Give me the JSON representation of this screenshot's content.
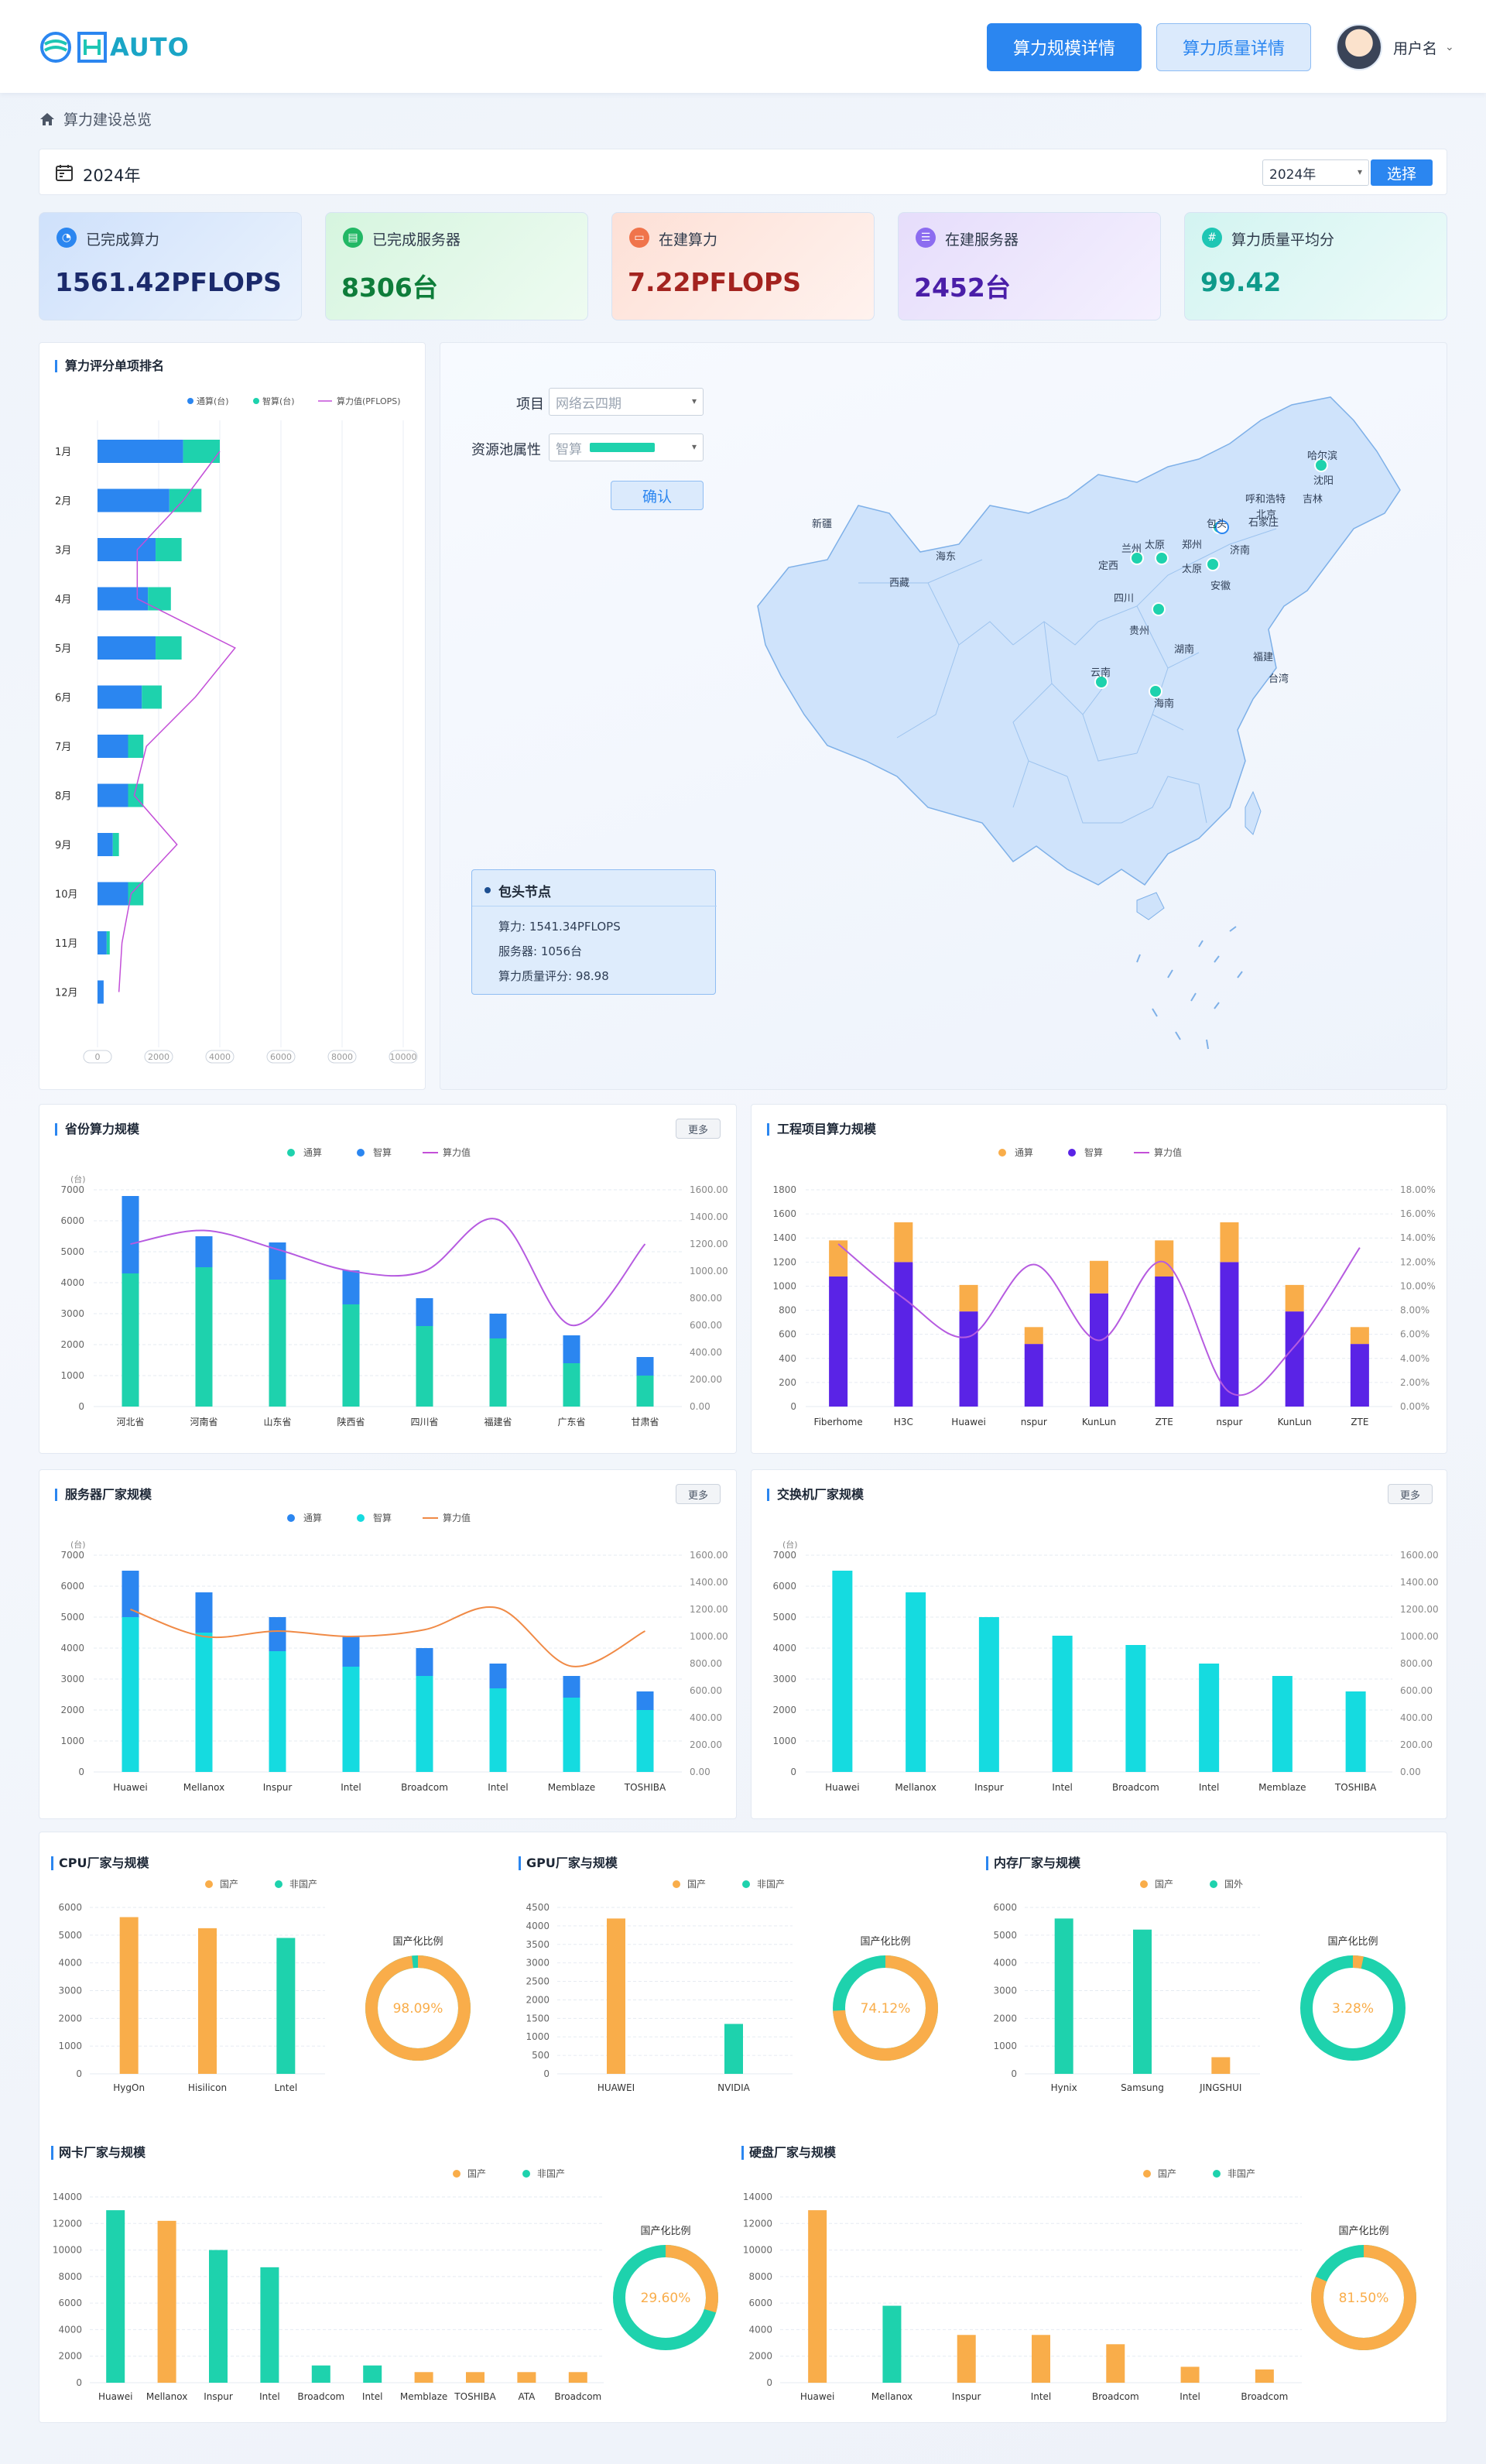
{
  "header": {
    "logo_text": "AUTO",
    "btn_scale": "算力规模详情",
    "btn_quality": "算力质量详情",
    "username": "用户名"
  },
  "breadcrumb": "算力建设总览",
  "filter": {
    "label": "2024年",
    "select_value": "2024年",
    "select_button": "选择"
  },
  "stats": [
    {
      "label": "已完成算力",
      "value": "1561.42PFLOPS",
      "color": "#1b2a6b"
    },
    {
      "label": "已完成服务器",
      "value": "8306台",
      "color": "#0e7d3a"
    },
    {
      "label": "在建算力",
      "value": "7.22PFLOPS",
      "color": "#a3231f"
    },
    {
      "label": "在建服务器",
      "value": "2452台",
      "color": "#4a1ea8"
    },
    {
      "label": "算力质量平均分",
      "value": "99.42",
      "color": "#0e9a8a"
    }
  ],
  "ranking": {
    "title": "算力评分单项排名",
    "legend": [
      "通算(台)",
      "智算(台)",
      "算力值(PFLOPS)"
    ],
    "chart_data": {
      "type": "bar",
      "orientation": "horizontal",
      "categories": [
        "1月",
        "2月",
        "3月",
        "4月",
        "5月",
        "6月",
        "7月",
        "8月",
        "9月",
        "10月",
        "11月",
        "12月"
      ],
      "series": [
        {
          "name": "通算(台)",
          "values": [
            2800,
            2350,
            1900,
            1650,
            1900,
            1450,
            1000,
            1000,
            500,
            1000,
            300,
            200
          ]
        },
        {
          "name": "智算(台)",
          "values": [
            1200,
            1050,
            850,
            750,
            850,
            650,
            500,
            500,
            200,
            500,
            100,
            0
          ]
        },
        {
          "name": "算力值(PFLOPS)",
          "values": [
            4000,
            2800,
            1300,
            1300,
            4500,
            3200,
            1600,
            1200,
            2600,
            1100,
            800,
            700
          ]
        }
      ],
      "xticks": [
        "0",
        "2000",
        "4000",
        "6000",
        "8000",
        "10000"
      ],
      "xlim": [
        0,
        10000
      ],
      "colors": [
        "#2b86f0",
        "#1ed2ad",
        "#c34fd8"
      ]
    }
  },
  "map": {
    "label_project": "项目",
    "project_value": "网络云四期",
    "label_pool": "资源池属性",
    "pool_value": "智算",
    "confirm": "确认",
    "cities": [
      "哈尔滨",
      "沈阳",
      "吉林",
      "呼和浩特",
      "北京",
      "石家庄",
      "包头",
      "新疆",
      "兰州",
      "太原",
      "郑州",
      "济南",
      "海东",
      "定西",
      "太原",
      "西藏",
      "安徽",
      "四川",
      "贵州",
      "湖南",
      "福建",
      "台湾",
      "云南",
      "海南"
    ],
    "tooltip": {
      "title": "包头节点",
      "power": "算力:  1541.34PFLOPS",
      "servers": "服务器:  1056台",
      "score": "算力质量评分:  98.98"
    }
  },
  "province": {
    "title": "省份算力规模",
    "more": "更多",
    "unit": "(台)",
    "legend": [
      "通算",
      "智算",
      "算力值"
    ],
    "chart_data": {
      "type": "bar",
      "stacked": true,
      "categories": [
        "河北省",
        "河南省",
        "山东省",
        "陕西省",
        "四川省",
        "福建省",
        "广东省",
        "甘肃省"
      ],
      "series": [
        {
          "name": "智算",
          "values": [
            4300,
            4500,
            4100,
            3300,
            2600,
            2200,
            1400,
            1000
          ]
        },
        {
          "name": "通算",
          "values": [
            2500,
            1000,
            1200,
            1100,
            900,
            800,
            900,
            600
          ]
        },
        {
          "name": "算力值",
          "values": [
            1200,
            1300,
            1160,
            1000,
            1000,
            1380,
            600,
            1200
          ]
        }
      ],
      "yticks": [
        "0",
        "1000",
        "2000",
        "3000",
        "4000",
        "5000",
        "6000",
        "7000"
      ],
      "y2ticks": [
        "0.00",
        "200.00",
        "400.00",
        "600.00",
        "800.00",
        "1000.00",
        "1200.00",
        "1400.00",
        "1600.00"
      ],
      "ylim": [
        0,
        7000
      ],
      "y2lim": [
        0,
        1600
      ]
    }
  },
  "project": {
    "title": "工程项目算力规模",
    "legend": [
      "通算",
      "智算",
      "算力值"
    ],
    "chart_data": {
      "type": "bar",
      "stacked": true,
      "categories": [
        "Fiberhome",
        "H3C",
        "Huawei",
        "nspur",
        "KunLun",
        "ZTE",
        "nspur",
        "KunLun",
        "ZTE"
      ],
      "series": [
        {
          "name": "智算",
          "values": [
            1080,
            1200,
            790,
            520,
            940,
            1080,
            1200,
            790,
            520
          ]
        },
        {
          "name": "通算",
          "values": [
            300,
            330,
            220,
            140,
            270,
            300,
            330,
            220,
            140
          ]
        },
        {
          "name": "算力值",
          "values": [
            13.5,
            9.0,
            5.8,
            11.8,
            5.5,
            12.0,
            1.2,
            5.0,
            13.2
          ]
        }
      ],
      "yticks": [
        "0",
        "200",
        "400",
        "600",
        "800",
        "1000",
        "1200",
        "1400",
        "1600",
        "1800"
      ],
      "y2ticks": [
        "0.00%",
        "2.00%",
        "4.00%",
        "6.00%",
        "8.00%",
        "10.00%",
        "12.00%",
        "14.00%",
        "16.00%",
        "18.00%"
      ],
      "ylim": [
        0,
        1800
      ],
      "y2lim": [
        0,
        18
      ]
    }
  },
  "server": {
    "title": "服务器厂家规模",
    "more": "更多",
    "unit": "(台)",
    "legend": [
      "通算",
      "智算",
      "算力值"
    ],
    "chart_data": {
      "type": "bar",
      "stacked": true,
      "categories": [
        "Huawei",
        "Mellanox",
        "Inspur",
        "Intel",
        "Broadcom",
        "Intel",
        "Memblaze",
        "TOSHIBA"
      ],
      "series": [
        {
          "name": "智算",
          "values": [
            5000,
            4500,
            3900,
            3400,
            3100,
            2700,
            2400,
            2000
          ]
        },
        {
          "name": "通算",
          "values": [
            1500,
            1300,
            1100,
            1000,
            900,
            800,
            700,
            600
          ]
        },
        {
          "name": "算力值",
          "values": [
            1200,
            1000,
            1040,
            1000,
            1050,
            1210,
            780,
            1040
          ]
        }
      ],
      "yticks": [
        "0",
        "1000",
        "2000",
        "3000",
        "4000",
        "5000",
        "6000",
        "7000"
      ],
      "y2ticks": [
        "0.00",
        "200.00",
        "400.00",
        "600.00",
        "800.00",
        "1000.00",
        "1200.00",
        "1400.00",
        "1600.00"
      ],
      "ylim": [
        0,
        7000
      ],
      "y2lim": [
        0,
        1600
      ]
    }
  },
  "switch": {
    "title": "交换机厂家规模",
    "more": "更多",
    "unit": "(台)",
    "chart_data": {
      "type": "bar",
      "categories": [
        "Huawei",
        "Mellanox",
        "Inspur",
        "Intel",
        "Broadcom",
        "Intel",
        "Memblaze",
        "TOSHIBA"
      ],
      "values": [
        6500,
        5800,
        5000,
        4400,
        4100,
        3500,
        3100,
        2600
      ],
      "yticks": [
        "0",
        "1000",
        "2000",
        "3000",
        "4000",
        "5000",
        "6000",
        "7000"
      ],
      "y2ticks": [
        "0.00",
        "200.00",
        "400.00",
        "600.00",
        "800.00",
        "1000.00",
        "1200.00",
        "1400.00",
        "1600.00"
      ],
      "ylim": [
        0,
        7000
      ]
    }
  },
  "cpu": {
    "title": "CPU厂家与规模",
    "legend": [
      "国产",
      "非国产"
    ],
    "ratio_label": "国产化比例",
    "ratio": "98.09%",
    "chart_data": {
      "type": "bar",
      "categories": [
        "HygOn",
        "Hisilicon",
        "Lntel"
      ],
      "values": [
        5650,
        5250,
        4900
      ],
      "kinds": [
        "国产",
        "国产",
        "非国产"
      ],
      "yticks": [
        "0",
        "1000",
        "2000",
        "3000",
        "4000",
        "5000",
        "6000"
      ],
      "ylim": [
        0,
        6000
      ],
      "pie": 98.09
    }
  },
  "gpu": {
    "title": "GPU厂家与规模",
    "legend": [
      "国产",
      "非国产"
    ],
    "ratio_label": "国产化比例",
    "ratio": "74.12%",
    "chart_data": {
      "type": "bar",
      "categories": [
        "HUAWEI",
        "NVIDIA"
      ],
      "values": [
        4200,
        1350
      ],
      "kinds": [
        "国产",
        "非国产"
      ],
      "yticks": [
        "0",
        "500",
        "1000",
        "1500",
        "2000",
        "2500",
        "3000",
        "3500",
        "4000",
        "4500"
      ],
      "ylim": [
        0,
        4500
      ],
      "pie": 74.12
    }
  },
  "memory": {
    "title": "内存厂家与规模",
    "legend": [
      "国产",
      "国外"
    ],
    "ratio_label": "国产化比例",
    "ratio": "3.28%",
    "chart_data": {
      "type": "bar",
      "categories": [
        "Hynix",
        "Samsung",
        "JINGSHUI"
      ],
      "values": [
        5600,
        5200,
        600
      ],
      "kinds": [
        "国外",
        "国外",
        "国产"
      ],
      "yticks": [
        "0",
        "1000",
        "2000",
        "3000",
        "4000",
        "5000",
        "6000"
      ],
      "ylim": [
        0,
        6000
      ],
      "pie": 3.28
    }
  },
  "nic": {
    "title": "网卡厂家与规模",
    "legend": [
      "国产",
      "非国产"
    ],
    "ratio_label": "国产化比例",
    "ratio": "29.60%",
    "chart_data": {
      "type": "bar",
      "categories": [
        "Huawei",
        "Mellanox",
        "Inspur",
        "Intel",
        "Broadcom",
        "Intel",
        "Memblaze",
        "TOSHIBA",
        "ATA",
        "Broadcom"
      ],
      "values": [
        13000,
        12200,
        10000,
        8700,
        1300,
        1300,
        800,
        800,
        800,
        800
      ],
      "kinds": [
        "非国产",
        "国产",
        "非国产",
        "非国产",
        "非国产",
        "非国产",
        "国产",
        "国产",
        "国产",
        "国产"
      ],
      "yticks": [
        "0",
        "2000",
        "4000",
        "6000",
        "8000",
        "10000",
        "12000",
        "14000"
      ],
      "ylim": [
        0,
        14000
      ],
      "pie": 29.6
    }
  },
  "disk": {
    "title": "硬盘厂家与规模",
    "legend": [
      "国产",
      "非国产"
    ],
    "ratio_label": "国产化比例",
    "ratio": "81.50%",
    "chart_data": {
      "type": "bar",
      "categories": [
        "Huawei",
        "Mellanox",
        "Inspur",
        "Intel",
        "Broadcom",
        "Intel",
        "Broadcom"
      ],
      "values": [
        13000,
        5800,
        3600,
        3600,
        2900,
        1200,
        1000
      ],
      "kinds": [
        "国产",
        "非国产",
        "国产",
        "国产",
        "国产",
        "国产",
        "国产"
      ],
      "yticks": [
        "0",
        "2000",
        "4000",
        "6000",
        "8000",
        "10000",
        "12000",
        "14000"
      ],
      "ylim": [
        0,
        14000
      ],
      "pie": 81.5
    }
  }
}
